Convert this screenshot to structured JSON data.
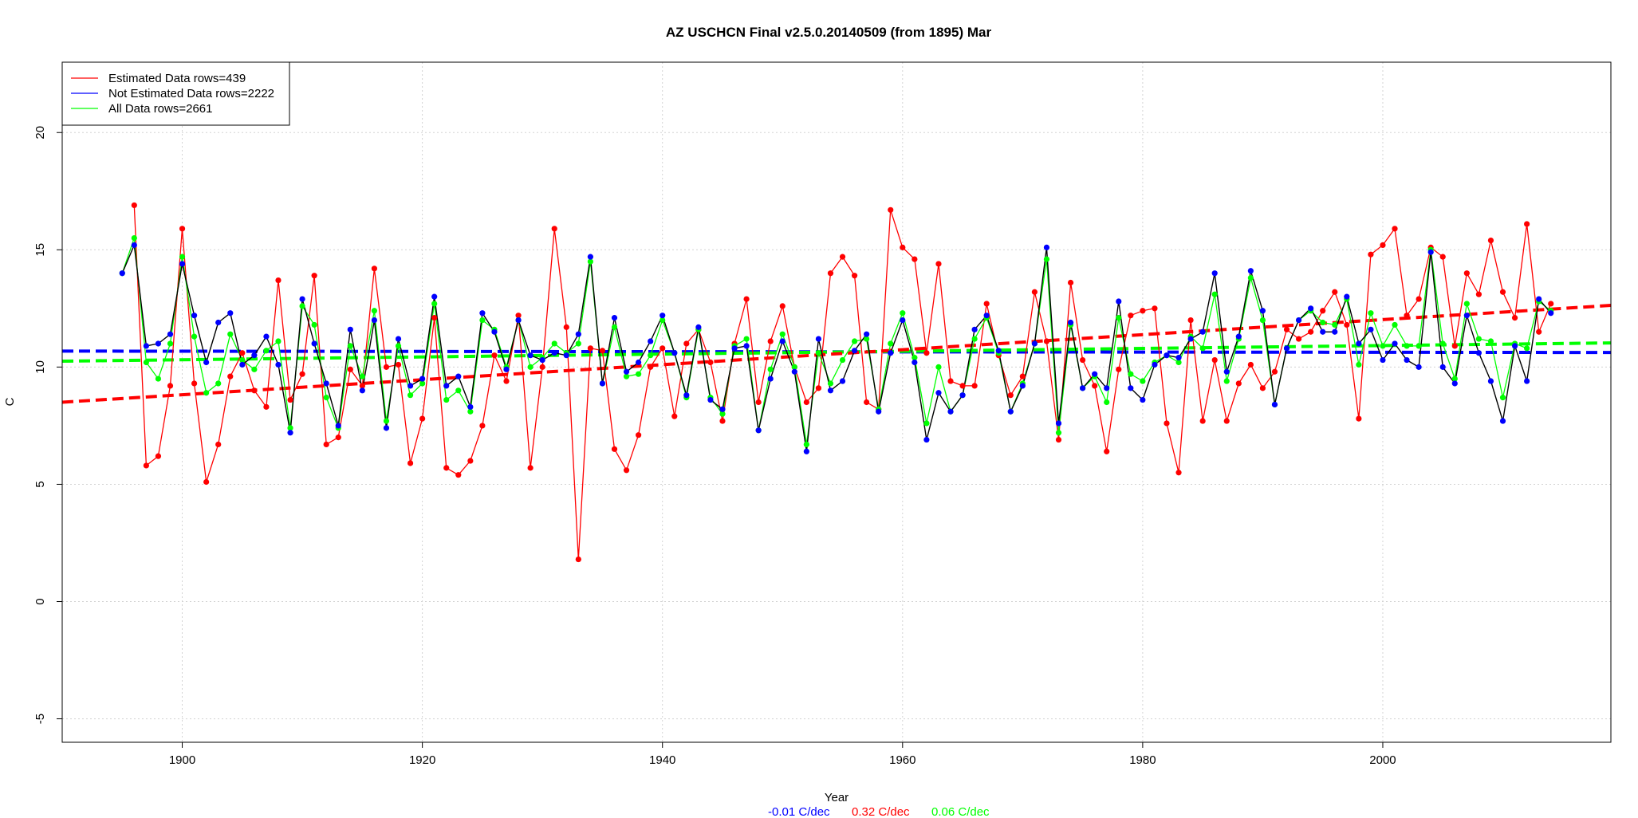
{
  "chart_data": {
    "type": "line",
    "title": "AZ USCHCN Final v2.5.0.20140509 (from 1895) Mar",
    "xlabel": "Year",
    "ylabel": "C",
    "xlim": [
      1890,
      2019
    ],
    "ylim": [
      -6.0,
      23.0
    ],
    "xticks": [
      1900,
      1920,
      1940,
      1960,
      1980,
      2000
    ],
    "yticks": [
      -5,
      0,
      5,
      10,
      15,
      20
    ],
    "grid": true,
    "legend_position": "top-left",
    "legend": [
      {
        "label": "Estimated Data rows=439",
        "color": "#ff0000"
      },
      {
        "label": "Not Estimated Data rows=2222",
        "color": "#0000ff"
      },
      {
        "label": "All Data rows=2661",
        "color": "#00ff00"
      }
    ],
    "trend_labels": [
      {
        "text": "-0.01 C/dec",
        "color": "#0000ff"
      },
      {
        "text": "0.32 C/dec",
        "color": "#ff0000"
      },
      {
        "text": "0.06 C/dec",
        "color": "#00ff00"
      }
    ],
    "trends": [
      {
        "name": "Not Estimated Data rows=2222",
        "color": "#0000ff",
        "x": [
          1890,
          2019
        ],
        "y": [
          10.68,
          10.62
        ]
      },
      {
        "name": "All Data rows=2661",
        "color": "#00ff00",
        "x": [
          1890,
          2019
        ],
        "y": [
          10.25,
          11.03
        ]
      },
      {
        "name": "Estimated Data rows=439",
        "color": "#ff0000",
        "x": [
          1890,
          2019
        ],
        "y": [
          8.5,
          12.63
        ]
      }
    ],
    "series": [
      {
        "name": "Estimated Data rows=439",
        "color": "#ff0000",
        "x": [
          1896,
          1897,
          1898,
          1899,
          1900,
          1901,
          1902,
          1903,
          1904,
          1905,
          1906,
          1907,
          1908,
          1909,
          1910,
          1911,
          1912,
          1913,
          1914,
          1915,
          1916,
          1917,
          1918,
          1919,
          1920,
          1921,
          1922,
          1923,
          1924,
          1925,
          1926,
          1927,
          1928,
          1929,
          1930,
          1931,
          1932,
          1933,
          1934,
          1935,
          1936,
          1937,
          1938,
          1939,
          1940,
          1941,
          1942,
          1943,
          1944,
          1945,
          1946,
          1947,
          1948,
          1949,
          1950,
          1951,
          1952,
          1953,
          1954,
          1955,
          1956,
          1957,
          1958,
          1959,
          1960,
          1961,
          1962,
          1963,
          1964,
          1965,
          1966,
          1967,
          1968,
          1969,
          1970,
          1971,
          1972,
          1973,
          1974,
          1975,
          1976,
          1977,
          1978,
          1979,
          1980,
          1981,
          1982,
          1983,
          1984,
          1985,
          1986,
          1987,
          1988,
          1989,
          1990,
          1991,
          1992,
          1993,
          1994,
          1995,
          1996,
          1997,
          1998,
          1999,
          2000,
          2001,
          2002,
          2003,
          2004,
          2005,
          2006,
          2007,
          2008,
          2009,
          2010,
          2011,
          2012,
          2013,
          2014
        ],
        "y": [
          16.9,
          5.8,
          6.2,
          9.2,
          15.9,
          9.3,
          5.1,
          6.7,
          9.6,
          10.6,
          9.0,
          8.3,
          13.7,
          8.6,
          9.7,
          13.9,
          6.7,
          7.0,
          9.9,
          9.2,
          14.2,
          10.0,
          10.1,
          5.9,
          7.8,
          12.1,
          5.7,
          5.4,
          6.0,
          7.5,
          10.5,
          9.4,
          12.2,
          5.7,
          10.0,
          15.9,
          11.7,
          1.8,
          10.8,
          10.7,
          6.5,
          5.6,
          7.1,
          10.0,
          10.8,
          7.9,
          11.0,
          11.6,
          10.2,
          7.7,
          11.0,
          12.9,
          8.5,
          11.1,
          12.6,
          10.0,
          8.5,
          9.1,
          14.0,
          14.7,
          13.9,
          8.5,
          8.2,
          16.7,
          15.1,
          14.6,
          10.6,
          14.4,
          9.4,
          9.2,
          9.2,
          12.7,
          10.5,
          8.8,
          9.6,
          13.2,
          11.1,
          6.9,
          13.6,
          10.3,
          9.2,
          6.4,
          9.9,
          12.2,
          12.4,
          12.5,
          7.6,
          5.5,
          12.0,
          7.7,
          10.3,
          7.7,
          9.3,
          10.1,
          9.1,
          9.8,
          11.6,
          11.2,
          11.5,
          12.4,
          13.2,
          11.8,
          7.8,
          14.8,
          15.2,
          15.9,
          12.2,
          12.9,
          15.1,
          14.7,
          10.9,
          14.0,
          13.1,
          15.4,
          13.2,
          12.1,
          16.1,
          11.5,
          12.7
        ]
      },
      {
        "name": "All Data rows=2661",
        "color": "#00ff00",
        "x": [
          1895,
          1896,
          1897,
          1898,
          1899,
          1900,
          1901,
          1902,
          1903,
          1904,
          1905,
          1906,
          1907,
          1908,
          1909,
          1910,
          1911,
          1912,
          1913,
          1914,
          1915,
          1916,
          1917,
          1918,
          1919,
          1920,
          1921,
          1922,
          1923,
          1924,
          1925,
          1926,
          1927,
          1928,
          1929,
          1930,
          1931,
          1932,
          1933,
          1934,
          1935,
          1936,
          1937,
          1938,
          1939,
          1940,
          1941,
          1942,
          1943,
          1944,
          1945,
          1946,
          1947,
          1948,
          1949,
          1950,
          1951,
          1952,
          1953,
          1954,
          1955,
          1956,
          1957,
          1958,
          1959,
          1960,
          1961,
          1962,
          1963,
          1964,
          1965,
          1966,
          1967,
          1968,
          1969,
          1970,
          1971,
          1972,
          1973,
          1974,
          1975,
          1976,
          1977,
          1978,
          1979,
          1980,
          1981,
          1982,
          1983,
          1984,
          1985,
          1986,
          1987,
          1988,
          1989,
          1990,
          1991,
          1992,
          1993,
          1994,
          1995,
          1996,
          1997,
          1998,
          1999,
          2000,
          2001,
          2002,
          2003,
          2004,
          2005,
          2006,
          2007,
          2008,
          2009,
          2010,
          2011,
          2012,
          2013,
          2014
        ],
        "y": [
          14.0,
          15.5,
          10.2,
          9.5,
          11.0,
          14.7,
          11.3,
          8.9,
          9.3,
          11.4,
          10.3,
          9.9,
          10.7,
          11.1,
          7.4,
          12.6,
          11.8,
          8.7,
          7.4,
          10.9,
          9.6,
          12.4,
          7.7,
          10.9,
          8.8,
          9.3,
          12.7,
          8.6,
          9.0,
          8.1,
          12.0,
          11.6,
          10.0,
          12.0,
          10.0,
          10.4,
          11.0,
          10.6,
          11.0,
          14.5,
          9.3,
          11.7,
          9.6,
          9.7,
          10.5,
          12.0,
          10.6,
          8.7,
          11.6,
          8.7,
          8.0,
          10.9,
          11.2,
          7.3,
          9.9,
          11.4,
          10.0,
          6.7,
          10.6,
          9.3,
          10.3,
          11.1,
          11.2,
          8.2,
          11.0,
          12.3,
          10.4,
          7.6,
          10.0,
          8.1,
          8.8,
          11.2,
          12.1,
          10.6,
          8.1,
          9.3,
          11.0,
          14.6,
          7.2,
          11.8,
          9.1,
          9.6,
          8.5,
          12.1,
          9.7,
          9.4,
          10.2,
          10.5,
          10.2,
          11.3,
          10.8,
          13.1,
          9.4,
          11.2,
          13.8,
          12.0,
          8.4,
          10.8,
          12.0,
          12.4,
          11.9,
          11.8,
          12.9,
          10.1,
          12.3,
          10.9,
          11.8,
          10.9,
          10.9,
          15.0,
          11.0,
          9.5,
          12.7,
          11.2,
          11.1,
          8.7,
          11.0,
          10.8,
          12.8,
          12.4
        ]
      },
      {
        "name": "Not Estimated Data rows=2222",
        "color": "#0000ff",
        "x": [
          1895,
          1896,
          1897,
          1898,
          1899,
          1900,
          1901,
          1902,
          1903,
          1904,
          1905,
          1906,
          1907,
          1908,
          1909,
          1910,
          1911,
          1912,
          1913,
          1914,
          1915,
          1916,
          1917,
          1918,
          1919,
          1920,
          1921,
          1922,
          1923,
          1924,
          1925,
          1926,
          1927,
          1928,
          1929,
          1930,
          1931,
          1932,
          1933,
          1934,
          1935,
          1936,
          1937,
          1938,
          1939,
          1940,
          1941,
          1942,
          1943,
          1944,
          1945,
          1946,
          1947,
          1948,
          1949,
          1950,
          1951,
          1952,
          1953,
          1954,
          1955,
          1956,
          1957,
          1958,
          1959,
          1960,
          1961,
          1962,
          1963,
          1964,
          1965,
          1966,
          1967,
          1968,
          1969,
          1970,
          1971,
          1972,
          1973,
          1974,
          1975,
          1976,
          1977,
          1978,
          1979,
          1980,
          1981,
          1982,
          1983,
          1984,
          1985,
          1986,
          1987,
          1988,
          1989,
          1990,
          1991,
          1992,
          1993,
          1994,
          1995,
          1996,
          1997,
          1998,
          1999,
          2000,
          2001,
          2002,
          2003,
          2004,
          2005,
          2006,
          2007,
          2008,
          2009,
          2010,
          2011,
          2012,
          2013,
          2014
        ],
        "y": [
          14.0,
          15.2,
          10.9,
          11.0,
          11.4,
          14.4,
          12.2,
          10.2,
          11.9,
          12.3,
          10.1,
          10.5,
          11.3,
          10.1,
          7.2,
          12.9,
          11.0,
          9.3,
          7.5,
          11.6,
          9.0,
          12.0,
          7.4,
          11.2,
          9.2,
          9.5,
          13.0,
          9.2,
          9.6,
          8.3,
          12.3,
          11.5,
          9.9,
          12.0,
          10.5,
          10.3,
          10.6,
          10.5,
          11.4,
          14.7,
          9.3,
          12.1,
          9.8,
          10.2,
          11.1,
          12.2,
          10.6,
          8.8,
          11.7,
          8.6,
          8.2,
          10.8,
          10.9,
          7.3,
          9.5,
          11.1,
          9.8,
          6.4,
          11.2,
          9.0,
          9.4,
          10.7,
          11.4,
          8.1,
          10.6,
          12.0,
          10.2,
          6.9,
          8.9,
          8.1,
          8.8,
          11.6,
          12.2,
          10.7,
          8.1,
          9.2,
          11.0,
          15.1,
          7.6,
          11.9,
          9.1,
          9.7,
          9.1,
          12.8,
          9.1,
          8.6,
          10.1,
          10.5,
          10.4,
          11.2,
          11.5,
          14.0,
          9.8,
          11.3,
          14.1,
          12.4,
          8.4,
          10.8,
          12.0,
          12.5,
          11.5,
          11.5,
          13.0,
          11.0,
          11.6,
          10.3,
          11.0,
          10.3,
          10.0,
          14.9,
          10.0,
          9.3,
          12.2,
          10.6,
          9.4,
          7.7,
          10.9,
          9.4,
          12.9,
          12.3
        ]
      }
    ]
  }
}
